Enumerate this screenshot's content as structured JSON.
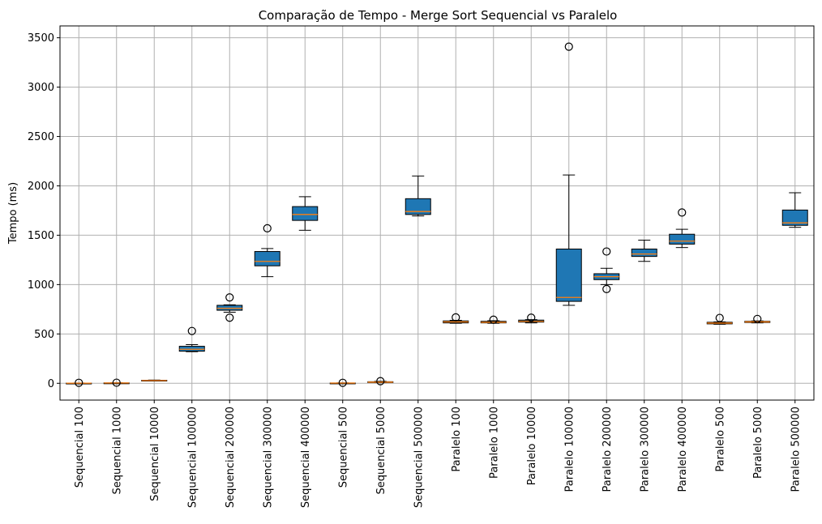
{
  "chart_data": {
    "type": "boxplot",
    "title": "Comparação de Tempo - Merge Sort Sequencial vs Paralelo",
    "xlabel": "",
    "ylabel": "Tempo (ms)",
    "ylim": [
      -170,
      3620
    ],
    "yticks": [
      0,
      500,
      1000,
      1500,
      2000,
      2500,
      3000,
      3500
    ],
    "grid": true,
    "colors": {
      "box_fill": "#1f77b4",
      "median": "#ff7f0e",
      "grid": "#b0b0b0",
      "edge": "#000000"
    },
    "categories": [
      "Sequencial 100",
      "Sequencial 1000",
      "Sequencial 10000",
      "Sequencial 100000",
      "Sequencial 200000",
      "Sequencial 300000",
      "Sequencial 400000",
      "Sequencial 500",
      "Sequencial 5000",
      "Sequencial 500000",
      "Paralelo 100",
      "Paralelo 1000",
      "Paralelo 10000",
      "Paralelo 100000",
      "Paralelo 200000",
      "Paralelo 300000",
      "Paralelo 400000",
      "Paralelo 500",
      "Paralelo 5000",
      "Paralelo 500000"
    ],
    "boxes": [
      {
        "whislo": 0,
        "q1": 0,
        "med": 1,
        "q3": 2,
        "whishi": 3,
        "fliers": [
          5
        ]
      },
      {
        "whislo": 1,
        "q1": 2,
        "med": 3,
        "q3": 4,
        "whishi": 5,
        "fliers": [
          6
        ]
      },
      {
        "whislo": 24,
        "q1": 26,
        "med": 28,
        "q3": 31,
        "whishi": 33,
        "fliers": []
      },
      {
        "whislo": 320,
        "q1": 325,
        "med": 345,
        "q3": 375,
        "whishi": 392,
        "fliers": [
          530
        ]
      },
      {
        "whislo": 720,
        "q1": 740,
        "med": 760,
        "q3": 790,
        "whishi": 795,
        "fliers": [
          870,
          665
        ]
      },
      {
        "whislo": 1080,
        "q1": 1190,
        "med": 1235,
        "q3": 1335,
        "whishi": 1365,
        "fliers": [
          1570
        ]
      },
      {
        "whislo": 1550,
        "q1": 1650,
        "med": 1710,
        "q3": 1790,
        "whishi": 1890,
        "fliers": []
      },
      {
        "whislo": 0,
        "q1": 1,
        "med": 2,
        "q3": 3,
        "whishi": 4,
        "fliers": [
          5
        ]
      },
      {
        "whislo": 8,
        "q1": 10,
        "med": 12,
        "q3": 16,
        "whishi": 20,
        "fliers": [
          22
        ]
      },
      {
        "whislo": 1695,
        "q1": 1710,
        "med": 1740,
        "q3": 1870,
        "whishi": 2100,
        "fliers": []
      },
      {
        "whislo": 608,
        "q1": 612,
        "med": 622,
        "q3": 632,
        "whishi": 638,
        "fliers": [
          668
        ]
      },
      {
        "whislo": 608,
        "q1": 612,
        "med": 618,
        "q3": 628,
        "whishi": 634,
        "fliers": [
          644
        ]
      },
      {
        "whislo": 612,
        "q1": 620,
        "med": 628,
        "q3": 640,
        "whishi": 645,
        "fliers": [
          665
        ]
      },
      {
        "whislo": 790,
        "q1": 830,
        "med": 870,
        "q3": 1360,
        "whishi": 2110,
        "fliers": [
          3410
        ]
      },
      {
        "whislo": 1000,
        "q1": 1050,
        "med": 1080,
        "q3": 1110,
        "whishi": 1165,
        "fliers": [
          1335,
          955
        ]
      },
      {
        "whislo": 1235,
        "q1": 1285,
        "med": 1310,
        "q3": 1360,
        "whishi": 1450,
        "fliers": []
      },
      {
        "whislo": 1375,
        "q1": 1410,
        "med": 1440,
        "q3": 1510,
        "whishi": 1560,
        "fliers": [
          1730
        ]
      },
      {
        "whislo": 598,
        "q1": 602,
        "med": 610,
        "q3": 618,
        "whishi": 622,
        "fliers": [
          662
        ]
      },
      {
        "whislo": 612,
        "q1": 616,
        "med": 622,
        "q3": 628,
        "whishi": 632,
        "fliers": [
          652
        ]
      },
      {
        "whislo": 1580,
        "q1": 1600,
        "med": 1625,
        "q3": 1755,
        "whishi": 1930,
        "fliers": []
      }
    ]
  }
}
